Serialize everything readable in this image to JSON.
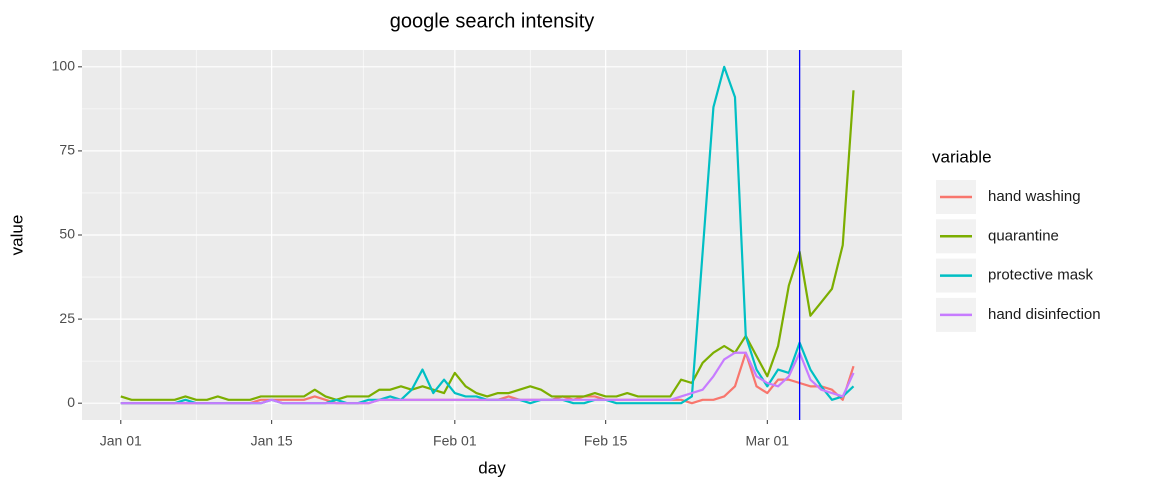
{
  "chart_data": {
    "type": "line",
    "title": "google search intensity",
    "x_label": "day",
    "y_label": "value",
    "legend_title": "variable",
    "x": [
      "Jan 01",
      "Jan 02",
      "Jan 03",
      "Jan 04",
      "Jan 05",
      "Jan 06",
      "Jan 07",
      "Jan 08",
      "Jan 09",
      "Jan 10",
      "Jan 11",
      "Jan 12",
      "Jan 13",
      "Jan 14",
      "Jan 15",
      "Jan 16",
      "Jan 17",
      "Jan 18",
      "Jan 19",
      "Jan 20",
      "Jan 21",
      "Jan 22",
      "Jan 23",
      "Jan 24",
      "Jan 25",
      "Jan 26",
      "Jan 27",
      "Jan 28",
      "Jan 29",
      "Jan 30",
      "Jan 31",
      "Feb 01",
      "Feb 02",
      "Feb 03",
      "Feb 04",
      "Feb 05",
      "Feb 06",
      "Feb 07",
      "Feb 08",
      "Feb 09",
      "Feb 10",
      "Feb 11",
      "Feb 12",
      "Feb 13",
      "Feb 14",
      "Feb 15",
      "Feb 16",
      "Feb 17",
      "Feb 18",
      "Feb 19",
      "Feb 20",
      "Feb 21",
      "Feb 22",
      "Feb 23",
      "Feb 24",
      "Feb 25",
      "Feb 26",
      "Feb 27",
      "Feb 28",
      "Feb 29",
      "Mar 01",
      "Mar 02",
      "Mar 03",
      "Mar 04",
      "Mar 05",
      "Mar 06",
      "Mar 07",
      "Mar 08",
      "Mar 09"
    ],
    "xticks": [
      "Jan 01",
      "Jan 15",
      "Feb 01",
      "Feb 15",
      "Mar 01"
    ],
    "ylim": [
      -5,
      105
    ],
    "yticks": [
      0,
      25,
      50,
      75,
      100
    ],
    "grid": true,
    "vline": {
      "x": "Mar 04",
      "color": "#0000FF"
    },
    "series": [
      {
        "name": "hand washing",
        "color": "#F8766D",
        "values": [
          0,
          0,
          0,
          0,
          0,
          0,
          0,
          0,
          0,
          0,
          0,
          0,
          0,
          1,
          1,
          1,
          1,
          1,
          2,
          1,
          0,
          0,
          0,
          0,
          1,
          1,
          1,
          1,
          1,
          1,
          1,
          1,
          1,
          1,
          1,
          1,
          2,
          1,
          1,
          1,
          1,
          2,
          1,
          2,
          2,
          1,
          1,
          1,
          1,
          1,
          1,
          1,
          1,
          0,
          1,
          1,
          2,
          5,
          15,
          5,
          3,
          7,
          7,
          6,
          5,
          5,
          4,
          1,
          11
        ]
      },
      {
        "name": "quarantine",
        "color": "#7CAE00",
        "values": [
          2,
          1,
          1,
          1,
          1,
          1,
          2,
          1,
          1,
          2,
          1,
          1,
          1,
          2,
          2,
          2,
          2,
          2,
          4,
          2,
          1,
          2,
          2,
          2,
          4,
          4,
          5,
          4,
          5,
          4,
          3,
          9,
          5,
          3,
          2,
          3,
          3,
          4,
          5,
          4,
          2,
          2,
          2,
          2,
          3,
          2,
          2,
          3,
          2,
          2,
          2,
          2,
          7,
          6,
          12,
          15,
          17,
          15,
          20,
          14,
          8,
          17,
          35,
          45,
          26,
          30,
          34,
          47,
          93
        ]
      },
      {
        "name": "protective mask",
        "color": "#00BFC4",
        "values": [
          0,
          0,
          0,
          0,
          0,
          0,
          1,
          0,
          0,
          0,
          0,
          0,
          0,
          0,
          1,
          0,
          0,
          0,
          0,
          0,
          1,
          0,
          0,
          1,
          1,
          2,
          1,
          4,
          10,
          3,
          7,
          3,
          2,
          2,
          1,
          1,
          1,
          1,
          0,
          1,
          1,
          1,
          0,
          0,
          1,
          1,
          0,
          0,
          0,
          0,
          0,
          0,
          0,
          2,
          45,
          88,
          100,
          91,
          20,
          10,
          5,
          10,
          9,
          18,
          10,
          5,
          1,
          2,
          5
        ]
      },
      {
        "name": "hand disinfection",
        "color": "#C77CFF",
        "values": [
          0,
          0,
          0,
          0,
          0,
          0,
          0,
          0,
          0,
          0,
          0,
          0,
          0,
          0,
          1,
          0,
          0,
          0,
          0,
          0,
          0,
          0,
          0,
          0,
          1,
          1,
          1,
          1,
          1,
          1,
          1,
          1,
          1,
          1,
          1,
          1,
          1,
          1,
          1,
          1,
          1,
          1,
          1,
          1,
          1,
          1,
          1,
          1,
          1,
          1,
          1,
          1,
          2,
          3,
          4,
          8,
          13,
          15,
          15,
          8,
          6,
          5,
          8,
          15,
          7,
          4,
          3,
          2,
          9
        ]
      }
    ]
  }
}
